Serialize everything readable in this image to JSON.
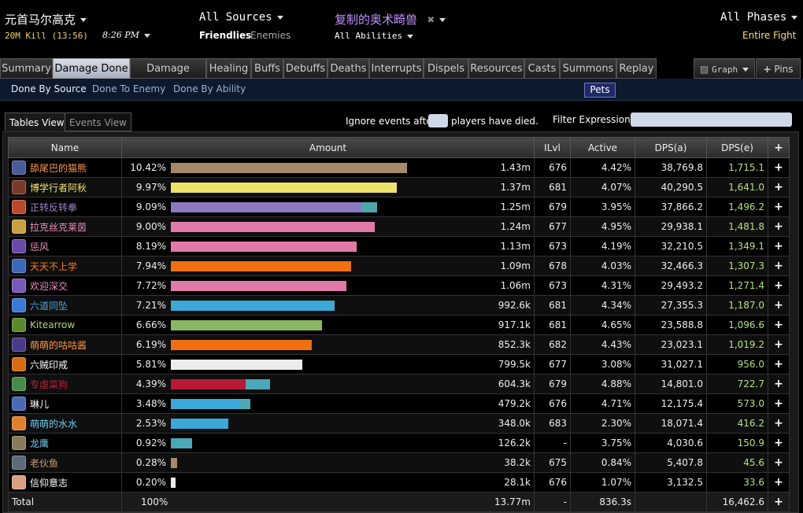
{
  "header": {
    "guild": "元首马尔高克",
    "kill": "20M Kill (13:56)",
    "time": "8:26 PM",
    "sources": "All Sources",
    "friendlies": "Friendlies",
    "enemies": "Enemies",
    "target": "复制的奥术畸兽",
    "abilities": "All Abilities",
    "phases": "All Phases",
    "fight": "Entire Fight"
  },
  "tabs": [
    "Summary",
    "Damage Done",
    "Damage Taken",
    "Healing",
    "Buffs",
    "Debuffs",
    "Deaths",
    "Interrupts",
    "Dispels",
    "Resources",
    "Casts",
    "Summons",
    "Replay"
  ],
  "right_buttons": {
    "graph": "Graph",
    "pins": "Pins"
  },
  "subtabs": [
    "Done By Source",
    "Done To Enemy",
    "Done By Ability"
  ],
  "pets": "Pets",
  "views": {
    "tables": "Tables View",
    "events": "Events View"
  },
  "options": {
    "ignore_pre": "Ignore events after",
    "ignore_post": "players have died.",
    "filter": "Filter Expression:"
  },
  "columns": {
    "name": "Name",
    "amount": "Amount",
    "ilvl": "ILvl",
    "active": "Active",
    "dpsa": "DPS(a)",
    "dpse": "DPS(e)",
    "plus": "+"
  },
  "rows": [
    {
      "name": "舔尾巴的猫熊",
      "pct": "10.42%",
      "amount": "1.43m",
      "ilvl": "676",
      "active": "4.42%",
      "dpsa": "38,769.8",
      "dpse": "1,715.1",
      "class": "druid",
      "name_color": "#ff9a4a",
      "bar": [
        {
          "frac": 1.0,
          "color": "#a58a6a"
        }
      ],
      "icon_color": "#4a5a9a"
    },
    {
      "name": "博学行者阿秋",
      "pct": "9.97%",
      "amount": "1.37m",
      "ilvl": "681",
      "active": "4.07%",
      "dpsa": "40,290.5",
      "dpse": "1,641.0",
      "class": "rogue",
      "name_color": "#f4e26a",
      "bar": [
        {
          "frac": 0.957,
          "color": "#ece46a"
        }
      ],
      "icon_color": "#7a3a2a"
    },
    {
      "name": "正转反转拳",
      "pct": "9.09%",
      "amount": "1.25m",
      "ilvl": "679",
      "active": "3.95%",
      "dpsa": "37,866.2",
      "dpse": "1,496.2",
      "class": "warlock",
      "name_color": "#9e86c8",
      "bar": [
        {
          "frac": 0.807,
          "color": "#8b78c0"
        },
        {
          "frac": 0.066,
          "color": "#4aa8a8"
        }
      ],
      "icon_color": "#b84a2a"
    },
    {
      "name": "拉克丝克莱茵",
      "pct": "9.00%",
      "amount": "1.24m",
      "ilvl": "677",
      "active": "4.95%",
      "dpsa": "29,938.1",
      "dpse": "1,481.8",
      "class": "paladin",
      "name_color": "#f08cc0",
      "bar": [
        {
          "frac": 0.863,
          "color": "#e27aa8"
        }
      ],
      "icon_color": "#c8a040"
    },
    {
      "name": "惩风",
      "pct": "8.19%",
      "amount": "1.13m",
      "ilvl": "673",
      "active": "4.19%",
      "dpsa": "32,210.5",
      "dpse": "1,349.1",
      "class": "paladin",
      "name_color": "#f08cc0",
      "bar": [
        {
          "frac": 0.787,
          "color": "#e27aa8"
        }
      ],
      "icon_color": "#6a4aa8"
    },
    {
      "name": "天天不上学",
      "pct": "7.94%",
      "amount": "1.09m",
      "ilvl": "678",
      "active": "4.03%",
      "dpsa": "32,466.3",
      "dpse": "1,307.3",
      "class": "druid",
      "name_color": "#ff7d0a",
      "bar": [
        {
          "frac": 0.763,
          "color": "#f07010"
        }
      ],
      "icon_color": "#3a6ab8"
    },
    {
      "name": "欢迎深交",
      "pct": "7.72%",
      "amount": "1.06m",
      "ilvl": "673",
      "active": "4.31%",
      "dpsa": "29,493.2",
      "dpse": "1,271.4",
      "class": "paladin",
      "name_color": "#f08cc0",
      "bar": [
        {
          "frac": 0.743,
          "color": "#e27aa8"
        }
      ],
      "icon_color": "#7a5ab8"
    },
    {
      "name": "六道同坠",
      "pct": "7.21%",
      "amount": "992.6k",
      "ilvl": "681",
      "active": "4.34%",
      "dpsa": "27,355.3",
      "dpse": "1,187.0",
      "class": "shaman",
      "name_color": "#4aa8e0",
      "bar": [
        {
          "frac": 0.693,
          "color": "#3aa8d8"
        }
      ],
      "icon_color": "#3a7ad8"
    },
    {
      "name": "Kitearrow",
      "pct": "6.66%",
      "amount": "917.1k",
      "ilvl": "681",
      "active": "4.65%",
      "dpsa": "23,588.8",
      "dpse": "1,096.6",
      "class": "hunter",
      "name_color": "#a8d870",
      "bar": [
        {
          "frac": 0.64,
          "color": "#8ab860"
        }
      ],
      "icon_color": "#5a8a2a"
    },
    {
      "name": "萌萌的咕咕酱",
      "pct": "6.19%",
      "amount": "852.3k",
      "ilvl": "682",
      "active": "4.43%",
      "dpsa": "23,023.1",
      "dpse": "1,019.2",
      "class": "druid",
      "name_color": "#ff9a4a",
      "bar": [
        {
          "frac": 0.597,
          "color": "#f07010"
        }
      ],
      "icon_color": "#4a3a8a"
    },
    {
      "name": "六贼印戒",
      "pct": "5.81%",
      "amount": "799.5k",
      "ilvl": "677",
      "active": "3.08%",
      "dpsa": "31,027.1",
      "dpse": "956.0",
      "class": "priest",
      "name_color": "#ffffff",
      "bar": [
        {
          "frac": 0.557,
          "color": "#ececec"
        }
      ],
      "icon_color": "#d86a10"
    },
    {
      "name": "专虐菜狗",
      "pct": "4.39%",
      "amount": "604.3k",
      "ilvl": "679",
      "active": "4.88%",
      "dpsa": "14,801.0",
      "dpse": "722.7",
      "class": "deathknight",
      "name_color": "#c41e3a",
      "bar": [
        {
          "frac": 0.317,
          "color": "#b81a36"
        },
        {
          "frac": 0.103,
          "color": "#4aa8b8"
        }
      ],
      "icon_color": "#4a8a4a"
    },
    {
      "name": "琳儿",
      "pct": "3.48%",
      "amount": "479.2k",
      "ilvl": "676",
      "active": "4.71%",
      "dpsa": "12,175.4",
      "dpse": "573.0",
      "class": "shaman",
      "name_color": "#ffffff",
      "bar": [
        {
          "frac": 0.29,
          "color": "#3aa8d8"
        },
        {
          "frac": 0.047,
          "color": "#4aa8b8"
        }
      ],
      "icon_color": "#4a6ab8"
    },
    {
      "name": "萌萌的水水",
      "pct": "2.53%",
      "amount": "348.0k",
      "ilvl": "683",
      "active": "2.30%",
      "dpsa": "18,071.4",
      "dpse": "416.2",
      "class": "mage",
      "name_color": "#69ccf0",
      "bar": [
        {
          "frac": 0.243,
          "color": "#3aa8d8"
        }
      ],
      "icon_color": "#e0802a"
    },
    {
      "name": "龙鹰",
      "pct": "0.92%",
      "amount": "126.2k",
      "ilvl": "-",
      "active": "3.75%",
      "dpsa": "4,030.6",
      "dpse": "150.9",
      "class": "pet",
      "name_color": "#69ccf0",
      "bar": [
        {
          "frac": 0.09,
          "color": "#4aa8b8"
        }
      ],
      "icon_color": "#8a7a5a"
    },
    {
      "name": "老伙鱼",
      "pct": "0.28%",
      "amount": "38.2k",
      "ilvl": "675",
      "active": "0.84%",
      "dpsa": "5,407.8",
      "dpse": "45.6",
      "class": "warrior",
      "name_color": "#c79c6e",
      "bar": [
        {
          "frac": 0.027,
          "color": "#a58a6a"
        }
      ],
      "icon_color": "#5a6a7a"
    },
    {
      "name": "信仰意志",
      "pct": "0.20%",
      "amount": "28.1k",
      "ilvl": "676",
      "active": "1.07%",
      "dpsa": "3,132.5",
      "dpse": "33.6",
      "class": "priest",
      "name_color": "#ffffff",
      "bar": [
        {
          "frac": 0.017,
          "color": "#ececec"
        }
      ],
      "icon_color": "#d8a080"
    }
  ],
  "total": {
    "name": "Total",
    "pct": "100%",
    "amount": "13.77m",
    "ilvl": "-",
    "active": "836.3s",
    "dpsa": "",
    "dpse": "16,462.6"
  }
}
